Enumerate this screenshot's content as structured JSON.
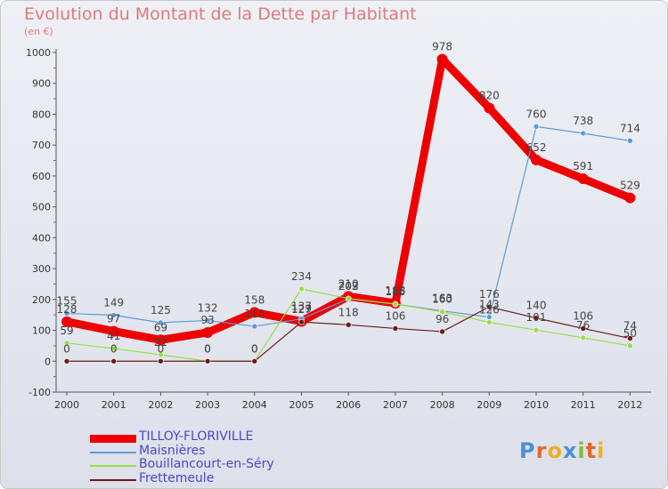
{
  "chart_data": {
    "type": "line",
    "title": "Evolution du Montant de la Dette par Habitant",
    "subtitle": "(en €)",
    "xlabel": "",
    "ylabel": "",
    "ylim": [
      -100,
      1000
    ],
    "yticks": [
      -100,
      0,
      100,
      200,
      300,
      400,
      500,
      600,
      700,
      800,
      900,
      1000
    ],
    "x": [
      "2000",
      "2001",
      "2002",
      "2003",
      "2004",
      "2005",
      "2006",
      "2007",
      "2008",
      "2009",
      "2010",
      "2011",
      "2012"
    ],
    "series": [
      {
        "name": "TILLOY-FLORIVILLE",
        "color": "#ee0000",
        "width": 9,
        "values": [
          128,
          97,
          69,
          93,
          158,
          129,
          210,
          188,
          978,
          820,
          652,
          591,
          529
        ],
        "labels": [
          "128",
          "97",
          "69",
          "93",
          "158",
          "129",
          "210",
          "188",
          "978",
          "820",
          "652",
          "591",
          "529"
        ]
      },
      {
        "name": "Maisnières",
        "color": "#5b9bd5",
        "width": 1.2,
        "values": [
          155,
          149,
          125,
          132,
          113,
          137,
          202,
          185,
          163,
          143,
          760,
          738,
          714
        ],
        "labels": [
          "155",
          "149",
          "125",
          "132",
          "113",
          "137",
          "202",
          "185",
          "163",
          "143",
          "760",
          "738",
          "714"
        ]
      },
      {
        "name": "Bouillancourt-en-Séry",
        "color": "#99dd44",
        "width": 1.2,
        "values": [
          59,
          41,
          21,
          0,
          0,
          234,
          203,
          185,
          160,
          126,
          101,
          76,
          50
        ],
        "labels": [
          "59",
          "41",
          "21",
          "0",
          "0",
          "234",
          "203",
          "185",
          "160",
          "126",
          "101",
          "76",
          "50"
        ]
      },
      {
        "name": "Frettemeule",
        "color": "#6b1a1a",
        "width": 1.2,
        "values": [
          0,
          0,
          0,
          0,
          0,
          127,
          118,
          106,
          96,
          176,
          140,
          106,
          74
        ],
        "labels": [
          "0",
          "0",
          "0",
          "0",
          "0",
          "127",
          "118",
          "106",
          "96",
          "176",
          "140",
          "106",
          "74"
        ]
      }
    ],
    "legend_position": "bottom-left",
    "grid": false
  },
  "brand": {
    "letters": [
      {
        "ch": "P",
        "color": "#4a8fd8"
      },
      {
        "ch": "r",
        "color": "#e8662c"
      },
      {
        "ch": "o",
        "color": "#f0b020"
      },
      {
        "ch": "x",
        "color": "#4a8fd8"
      },
      {
        "ch": "i",
        "color": "#7bbf3a"
      },
      {
        "ch": "t",
        "color": "#e8662c"
      },
      {
        "ch": "i",
        "color": "#f0b020"
      }
    ]
  }
}
